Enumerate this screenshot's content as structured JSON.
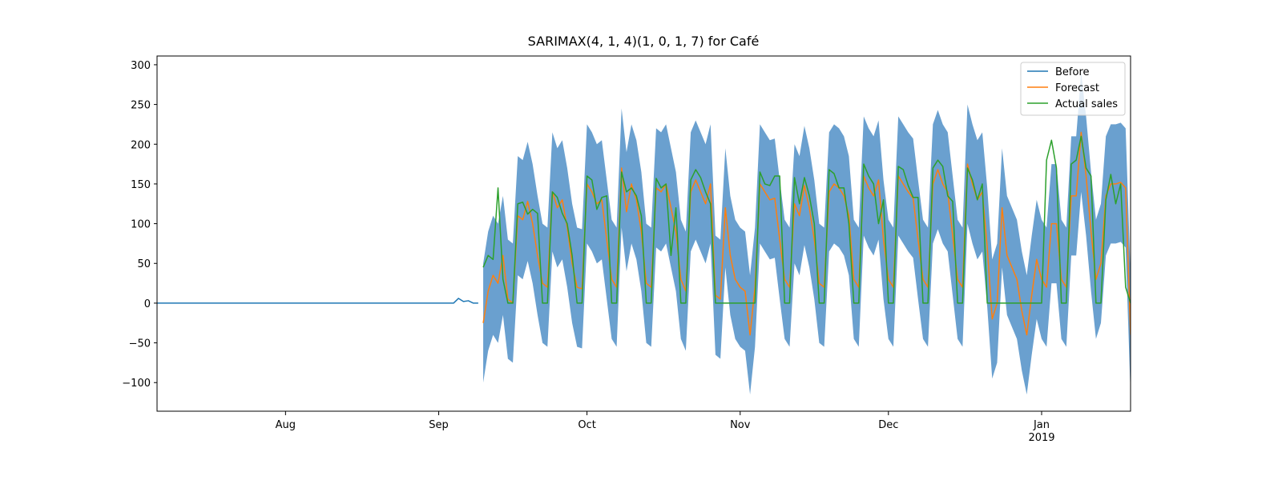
{
  "chart_data": {
    "type": "line",
    "title": "SARIMAX(4, 1, 4)(1, 0, 1, 7) for Café",
    "xlim": [
      "2018-07-06",
      "2019-01-19"
    ],
    "xticks": [
      {
        "value": "2018-08-01",
        "label": "Aug"
      },
      {
        "value": "2018-09-01",
        "label": "Sep"
      },
      {
        "value": "2018-10-01",
        "label": "Oct"
      },
      {
        "value": "2018-11-01",
        "label": "Nov"
      },
      {
        "value": "2018-12-01",
        "label": "Dec"
      },
      {
        "value": "2019-01-01",
        "label": "Jan\n2019"
      }
    ],
    "ylim": [
      -136,
      311
    ],
    "yticks": [
      {
        "value": -100,
        "label": "−100"
      },
      {
        "value": -50,
        "label": "−50"
      },
      0,
      50,
      100,
      150,
      200,
      250,
      300
    ],
    "legend": "upper right",
    "x": [
      "2018-09-10",
      "2018-09-11",
      "2018-09-12",
      "2018-09-13",
      "2018-09-14",
      "2018-09-15",
      "2018-09-16",
      "2018-09-17",
      "2018-09-18",
      "2018-09-19",
      "2018-09-20",
      "2018-09-21",
      "2018-09-22",
      "2018-09-23",
      "2018-09-24",
      "2018-09-25",
      "2018-09-26",
      "2018-09-27",
      "2018-09-28",
      "2018-09-29",
      "2018-09-30",
      "2018-10-01",
      "2018-10-02",
      "2018-10-03",
      "2018-10-04",
      "2018-10-05",
      "2018-10-06",
      "2018-10-07",
      "2018-10-08",
      "2018-10-09",
      "2018-10-10",
      "2018-10-11",
      "2018-10-12",
      "2018-10-13",
      "2018-10-14",
      "2018-10-15",
      "2018-10-16",
      "2018-10-17",
      "2018-10-18",
      "2018-10-19",
      "2018-10-20",
      "2018-10-21",
      "2018-10-22",
      "2018-10-23",
      "2018-10-24",
      "2018-10-25",
      "2018-10-26",
      "2018-10-27",
      "2018-10-28",
      "2018-10-29",
      "2018-10-30",
      "2018-10-31",
      "2018-11-01",
      "2018-11-02",
      "2018-11-03",
      "2018-11-04",
      "2018-11-05",
      "2018-11-06",
      "2018-11-07",
      "2018-11-08",
      "2018-11-09",
      "2018-11-10",
      "2018-11-11",
      "2018-11-12",
      "2018-11-13",
      "2018-11-14",
      "2018-11-15",
      "2018-11-16",
      "2018-11-17",
      "2018-11-18",
      "2018-11-19",
      "2018-11-20",
      "2018-11-21",
      "2018-11-22",
      "2018-11-23",
      "2018-11-24",
      "2018-11-25",
      "2018-11-26",
      "2018-11-27",
      "2018-11-28",
      "2018-11-29",
      "2018-11-30",
      "2018-12-01",
      "2018-12-02",
      "2018-12-03",
      "2018-12-04",
      "2018-12-05",
      "2018-12-06",
      "2018-12-07",
      "2018-12-08",
      "2018-12-09",
      "2018-12-10",
      "2018-12-11",
      "2018-12-12",
      "2018-12-13",
      "2018-12-14",
      "2018-12-15",
      "2018-12-16",
      "2018-12-17",
      "2018-12-18",
      "2018-12-19",
      "2018-12-20",
      "2018-12-21",
      "2018-12-22",
      "2018-12-23",
      "2018-12-24",
      "2018-12-25",
      "2018-12-26",
      "2018-12-27",
      "2018-12-28",
      "2018-12-29",
      "2018-12-30",
      "2018-12-31",
      "2019-01-01",
      "2019-01-02",
      "2019-01-03",
      "2019-01-04",
      "2019-01-05",
      "2019-01-06",
      "2019-01-07",
      "2019-01-08",
      "2019-01-09",
      "2019-01-10",
      "2019-01-11",
      "2019-01-12",
      "2019-01-13",
      "2019-01-14",
      "2019-01-15",
      "2019-01-16",
      "2019-01-17",
      "2019-01-18",
      "2019-01-19"
    ],
    "interval": {
      "color": "#6aa0cf",
      "lower": [
        -100,
        -60,
        -40,
        -50,
        -15,
        -70,
        -75,
        35,
        30,
        53,
        25,
        -15,
        -50,
        -55,
        65,
        45,
        55,
        20,
        -25,
        -55,
        -57,
        75,
        65,
        50,
        55,
        5,
        -45,
        -55,
        95,
        40,
        75,
        55,
        15,
        -50,
        -55,
        70,
        65,
        75,
        45,
        15,
        -45,
        -60,
        65,
        80,
        65,
        50,
        75,
        -65,
        -70,
        45,
        -15,
        -45,
        -55,
        -60,
        -115,
        -55,
        75,
        65,
        55,
        57,
        5,
        -45,
        -55,
        50,
        35,
        73,
        45,
        5,
        -50,
        -55,
        65,
        75,
        70,
        60,
        35,
        -45,
        -55,
        85,
        70,
        60,
        80,
        5,
        -45,
        -55,
        85,
        75,
        65,
        57,
        5,
        -45,
        -55,
        75,
        93,
        75,
        65,
        10,
        -45,
        -55,
        100,
        75,
        55,
        65,
        -5,
        -95,
        -75,
        45,
        -15,
        -30,
        -45,
        -85,
        -115,
        -65,
        -20,
        -45,
        -55,
        25,
        25,
        -45,
        -55,
        60,
        60,
        140,
        85,
        15,
        -45,
        -25,
        60,
        75,
        75,
        77,
        70,
        -115
      ],
      "upper": [
        50,
        90,
        110,
        100,
        135,
        80,
        75,
        185,
        180,
        203,
        175,
        135,
        100,
        95,
        215,
        195,
        205,
        170,
        125,
        95,
        93,
        225,
        215,
        200,
        205,
        155,
        105,
        95,
        245,
        190,
        225,
        205,
        165,
        100,
        95,
        220,
        215,
        225,
        195,
        165,
        105,
        90,
        215,
        230,
        215,
        200,
        225,
        85,
        80,
        195,
        135,
        105,
        95,
        90,
        35,
        95,
        225,
        215,
        205,
        207,
        155,
        105,
        95,
        200,
        185,
        223,
        195,
        155,
        100,
        95,
        215,
        225,
        220,
        210,
        185,
        105,
        95,
        235,
        220,
        210,
        230,
        155,
        105,
        95,
        235,
        225,
        215,
        207,
        155,
        105,
        95,
        225,
        243,
        225,
        215,
        160,
        105,
        95,
        250,
        225,
        205,
        215,
        145,
        55,
        75,
        195,
        135,
        120,
        105,
        65,
        35,
        85,
        130,
        105,
        95,
        175,
        175,
        105,
        95,
        210,
        210,
        290,
        235,
        165,
        105,
        125,
        210,
        225,
        225,
        227,
        220,
        35
      ]
    },
    "series": [
      {
        "name": "Before",
        "color": "#1f77b4",
        "x": [
          "2018-07-06",
          "2018-07-07",
          "2018-07-08",
          "2018-07-09",
          "2018-07-10",
          "2018-07-11",
          "2018-07-12",
          "2018-07-13",
          "2018-07-14",
          "2018-07-15",
          "2018-07-16",
          "2018-07-17",
          "2018-07-18",
          "2018-07-19",
          "2018-07-20",
          "2018-07-21",
          "2018-07-22",
          "2018-07-23",
          "2018-07-24",
          "2018-07-25",
          "2018-07-26",
          "2018-07-27",
          "2018-07-28",
          "2018-07-29",
          "2018-07-30",
          "2018-07-31",
          "2018-08-01",
          "2018-08-02",
          "2018-08-03",
          "2018-08-04",
          "2018-08-05",
          "2018-08-06",
          "2018-08-07",
          "2018-08-08",
          "2018-08-09",
          "2018-08-10",
          "2018-08-11",
          "2018-08-12",
          "2018-08-13",
          "2018-08-14",
          "2018-08-15",
          "2018-08-16",
          "2018-08-17",
          "2018-08-18",
          "2018-08-19",
          "2018-08-20",
          "2018-08-21",
          "2018-08-22",
          "2018-08-23",
          "2018-08-24",
          "2018-08-25",
          "2018-08-26",
          "2018-08-27",
          "2018-08-28",
          "2018-08-29",
          "2018-08-30",
          "2018-08-31",
          "2018-09-01",
          "2018-09-02",
          "2018-09-03",
          "2018-09-04",
          "2018-09-05",
          "2018-09-06",
          "2018-09-07",
          "2018-09-08",
          "2018-09-09"
        ],
        "values": [
          0,
          0,
          0,
          0,
          0,
          0,
          0,
          0,
          0,
          0,
          0,
          0,
          0,
          0,
          0,
          0,
          0,
          0,
          0,
          0,
          0,
          0,
          0,
          0,
          0,
          0,
          0,
          0,
          0,
          0,
          0,
          0,
          0,
          0,
          0,
          0,
          0,
          0,
          0,
          0,
          0,
          0,
          0,
          0,
          0,
          0,
          0,
          0,
          0,
          0,
          0,
          0,
          0,
          0,
          0,
          0,
          0,
          0,
          0,
          0,
          0,
          6,
          2,
          3,
          0,
          0
        ]
      },
      {
        "name": "Forecast",
        "color": "#ff7f0e",
        "values": [
          -25,
          15,
          35,
          25,
          60,
          5,
          0,
          110,
          105,
          128,
          100,
          60,
          25,
          20,
          140,
          120,
          130,
          95,
          50,
          20,
          18,
          150,
          140,
          125,
          130,
          80,
          30,
          20,
          170,
          115,
          150,
          130,
          90,
          25,
          20,
          145,
          140,
          150,
          120,
          90,
          30,
          15,
          140,
          155,
          140,
          125,
          150,
          10,
          5,
          120,
          60,
          30,
          20,
          15,
          -40,
          20,
          150,
          140,
          130,
          132,
          80,
          30,
          20,
          125,
          110,
          148,
          120,
          80,
          25,
          20,
          140,
          150,
          145,
          135,
          110,
          30,
          20,
          160,
          145,
          135,
          155,
          80,
          30,
          20,
          160,
          150,
          140,
          132,
          80,
          30,
          20,
          150,
          168,
          150,
          140,
          85,
          30,
          20,
          175,
          150,
          130,
          140,
          70,
          -20,
          0,
          120,
          60,
          45,
          30,
          -10,
          -40,
          10,
          55,
          30,
          20,
          100,
          100,
          30,
          20,
          135,
          135,
          215,
          160,
          90,
          30,
          50,
          135,
          150,
          150,
          152,
          145,
          -40
        ]
      },
      {
        "name": "Actual sales",
        "color": "#2ca02c",
        "values": [
          45,
          60,
          55,
          145,
          30,
          0,
          0,
          125,
          127,
          112,
          118,
          113,
          0,
          0,
          140,
          133,
          113,
          100,
          60,
          0,
          0,
          160,
          155,
          118,
          133,
          135,
          0,
          0,
          165,
          140,
          145,
          135,
          110,
          0,
          0,
          157,
          145,
          150,
          60,
          120,
          0,
          0,
          155,
          168,
          158,
          140,
          125,
          0,
          0,
          0,
          0,
          0,
          0,
          0,
          0,
          0,
          165,
          150,
          148,
          160,
          160,
          0,
          0,
          158,
          125,
          158,
          135,
          100,
          0,
          0,
          168,
          163,
          145,
          145,
          100,
          0,
          0,
          175,
          160,
          150,
          100,
          130,
          0,
          0,
          172,
          168,
          148,
          133,
          133,
          0,
          0,
          170,
          180,
          172,
          135,
          128,
          0,
          0,
          170,
          155,
          130,
          150,
          0,
          0,
          0,
          0,
          0,
          0,
          0,
          0,
          0,
          0,
          0,
          0,
          180,
          205,
          170,
          0,
          0,
          175,
          180,
          210,
          170,
          160,
          0,
          0,
          130,
          162,
          125,
          150,
          20,
          0
        ]
      }
    ]
  }
}
